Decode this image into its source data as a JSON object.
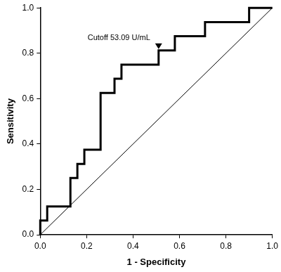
{
  "chart_data": {
    "type": "line",
    "xlabel": "1 - Specificity",
    "ylabel": "Sensitivity",
    "xlim": [
      0,
      1
    ],
    "ylim": [
      0,
      1
    ],
    "xticks": [
      {
        "value": 0,
        "label": "0.0"
      },
      0.2,
      0.4,
      0.6,
      0.8,
      {
        "value": 1,
        "label": "1.0"
      }
    ],
    "yticks": [
      {
        "value": 0,
        "label": "0.0"
      },
      0.2,
      0.4,
      0.6,
      0.8,
      {
        "value": 1,
        "label": "1.0"
      }
    ],
    "grid": false,
    "series": [
      {
        "color": "#000000",
        "line_style": "solid",
        "x": [
          0,
          0,
          0.03,
          0.03,
          0.13,
          0.13,
          0.16,
          0.16,
          0.19,
          0.19,
          0.26,
          0.26,
          0.32,
          0.32,
          0.35,
          0.35,
          0.51,
          0.51,
          0.58,
          0.58,
          0.71,
          0.71,
          0.9,
          0.9,
          1
        ],
        "values": [
          0,
          0.0625,
          0.0625,
          0.125,
          0.125,
          0.25,
          0.25,
          0.3125,
          0.3125,
          0.375,
          0.375,
          0.625,
          0.625,
          0.6875,
          0.6875,
          0.75,
          0.75,
          0.8125,
          0.8125,
          0.875,
          0.875,
          0.9375,
          0.9375,
          1,
          1
        ]
      },
      {
        "color": "#000000",
        "line_style": "solid",
        "x": [
          0,
          1
        ],
        "values": [
          0,
          1
        ]
      }
    ],
    "annotations": [
      {
        "text": "Cutoff 53.09 U/mL",
        "x": 0.51,
        "y": 0.8125,
        "marker": "triangle"
      }
    ]
  }
}
